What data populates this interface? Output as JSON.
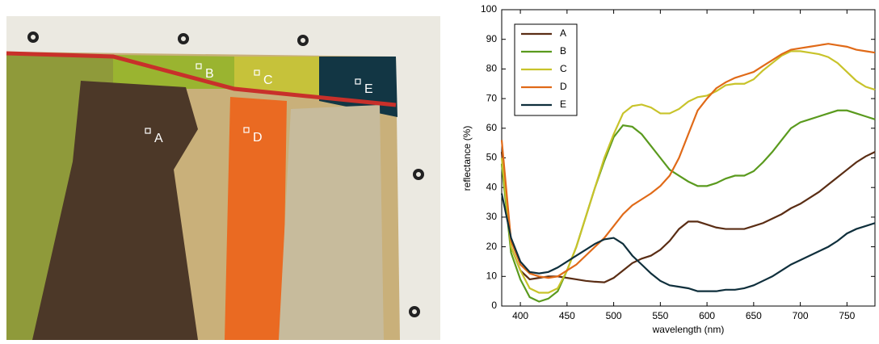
{
  "chart_data": {
    "type": "line",
    "x_label": "wavelength (nm)",
    "y_label": "reflectance (%)",
    "x": [
      380,
      390,
      400,
      410,
      420,
      430,
      440,
      450,
      460,
      470,
      480,
      490,
      500,
      510,
      520,
      530,
      540,
      550,
      560,
      570,
      580,
      590,
      600,
      610,
      620,
      630,
      640,
      650,
      660,
      670,
      680,
      690,
      700,
      710,
      720,
      730,
      740,
      750,
      760,
      770,
      780
    ],
    "series": [
      {
        "name": "A",
        "color": "#5a2d14",
        "values": [
          52,
          20,
          12,
          9,
          9.5,
          10,
          10,
          9.5,
          9,
          8.5,
          8.2,
          8,
          9.5,
          12,
          14.5,
          16,
          17,
          19,
          22,
          26,
          28.5,
          28.5,
          27.5,
          26.5,
          26,
          26,
          26,
          27,
          28,
          29.5,
          31,
          33,
          34.5,
          36.5,
          38.5,
          41,
          43.5,
          46,
          48.5,
          50.5,
          52
        ]
      },
      {
        "name": "B",
        "color": "#5a9a1e",
        "values": [
          48,
          18,
          9,
          3,
          1.5,
          2.5,
          5,
          12,
          20,
          30,
          40,
          49,
          57,
          61,
          60.5,
          58,
          54,
          50,
          46,
          44,
          42,
          40.5,
          40.5,
          41.5,
          43,
          44,
          44,
          45.5,
          48.5,
          52,
          56,
          60,
          62,
          63,
          64,
          65,
          66,
          66,
          65,
          64,
          63
        ]
      },
      {
        "name": "C",
        "color": "#c8c32a",
        "values": [
          50,
          20,
          12,
          6,
          4.5,
          4.5,
          6,
          12,
          20,
          30,
          40,
          50,
          58,
          65,
          67.5,
          68,
          67,
          65,
          65,
          66.5,
          69,
          70.5,
          71,
          72.5,
          74.5,
          75,
          75,
          76.5,
          79.5,
          82,
          84.5,
          86,
          86,
          85.5,
          85,
          84,
          82,
          79,
          76,
          74,
          73
        ]
      },
      {
        "name": "D",
        "color": "#e06a18",
        "values": [
          56,
          22,
          14,
          11,
          10,
          9.5,
          10,
          12,
          14,
          17,
          20,
          23,
          27,
          31,
          34,
          36,
          38,
          40.5,
          44,
          50,
          58,
          66,
          70,
          73.5,
          75.5,
          77,
          78,
          79,
          81,
          83,
          85,
          86.5,
          87,
          87.5,
          88,
          88.5,
          88,
          87.5,
          86.5,
          86,
          85.5
        ]
      },
      {
        "name": "E",
        "color": "#0f2f3c",
        "values": [
          38,
          23,
          15,
          11.5,
          11,
          11.5,
          13,
          15,
          17,
          19,
          21,
          22.5,
          23,
          21,
          17,
          14,
          11,
          8.5,
          7,
          6.5,
          6,
          5,
          5,
          5,
          5.5,
          5.5,
          6,
          7,
          8.5,
          10,
          12,
          14,
          15.5,
          17,
          18.5,
          20,
          22,
          24.5,
          26,
          27,
          28
        ]
      }
    ],
    "xlim": [
      380,
      780
    ],
    "xticks": [
      400,
      450,
      500,
      550,
      600,
      650,
      700,
      750
    ],
    "ylim": [
      0,
      100
    ],
    "yticks": [
      0,
      10,
      20,
      30,
      40,
      50,
      60,
      70,
      80,
      90,
      100
    ],
    "grid": false,
    "legend": "upper-left"
  }
}
